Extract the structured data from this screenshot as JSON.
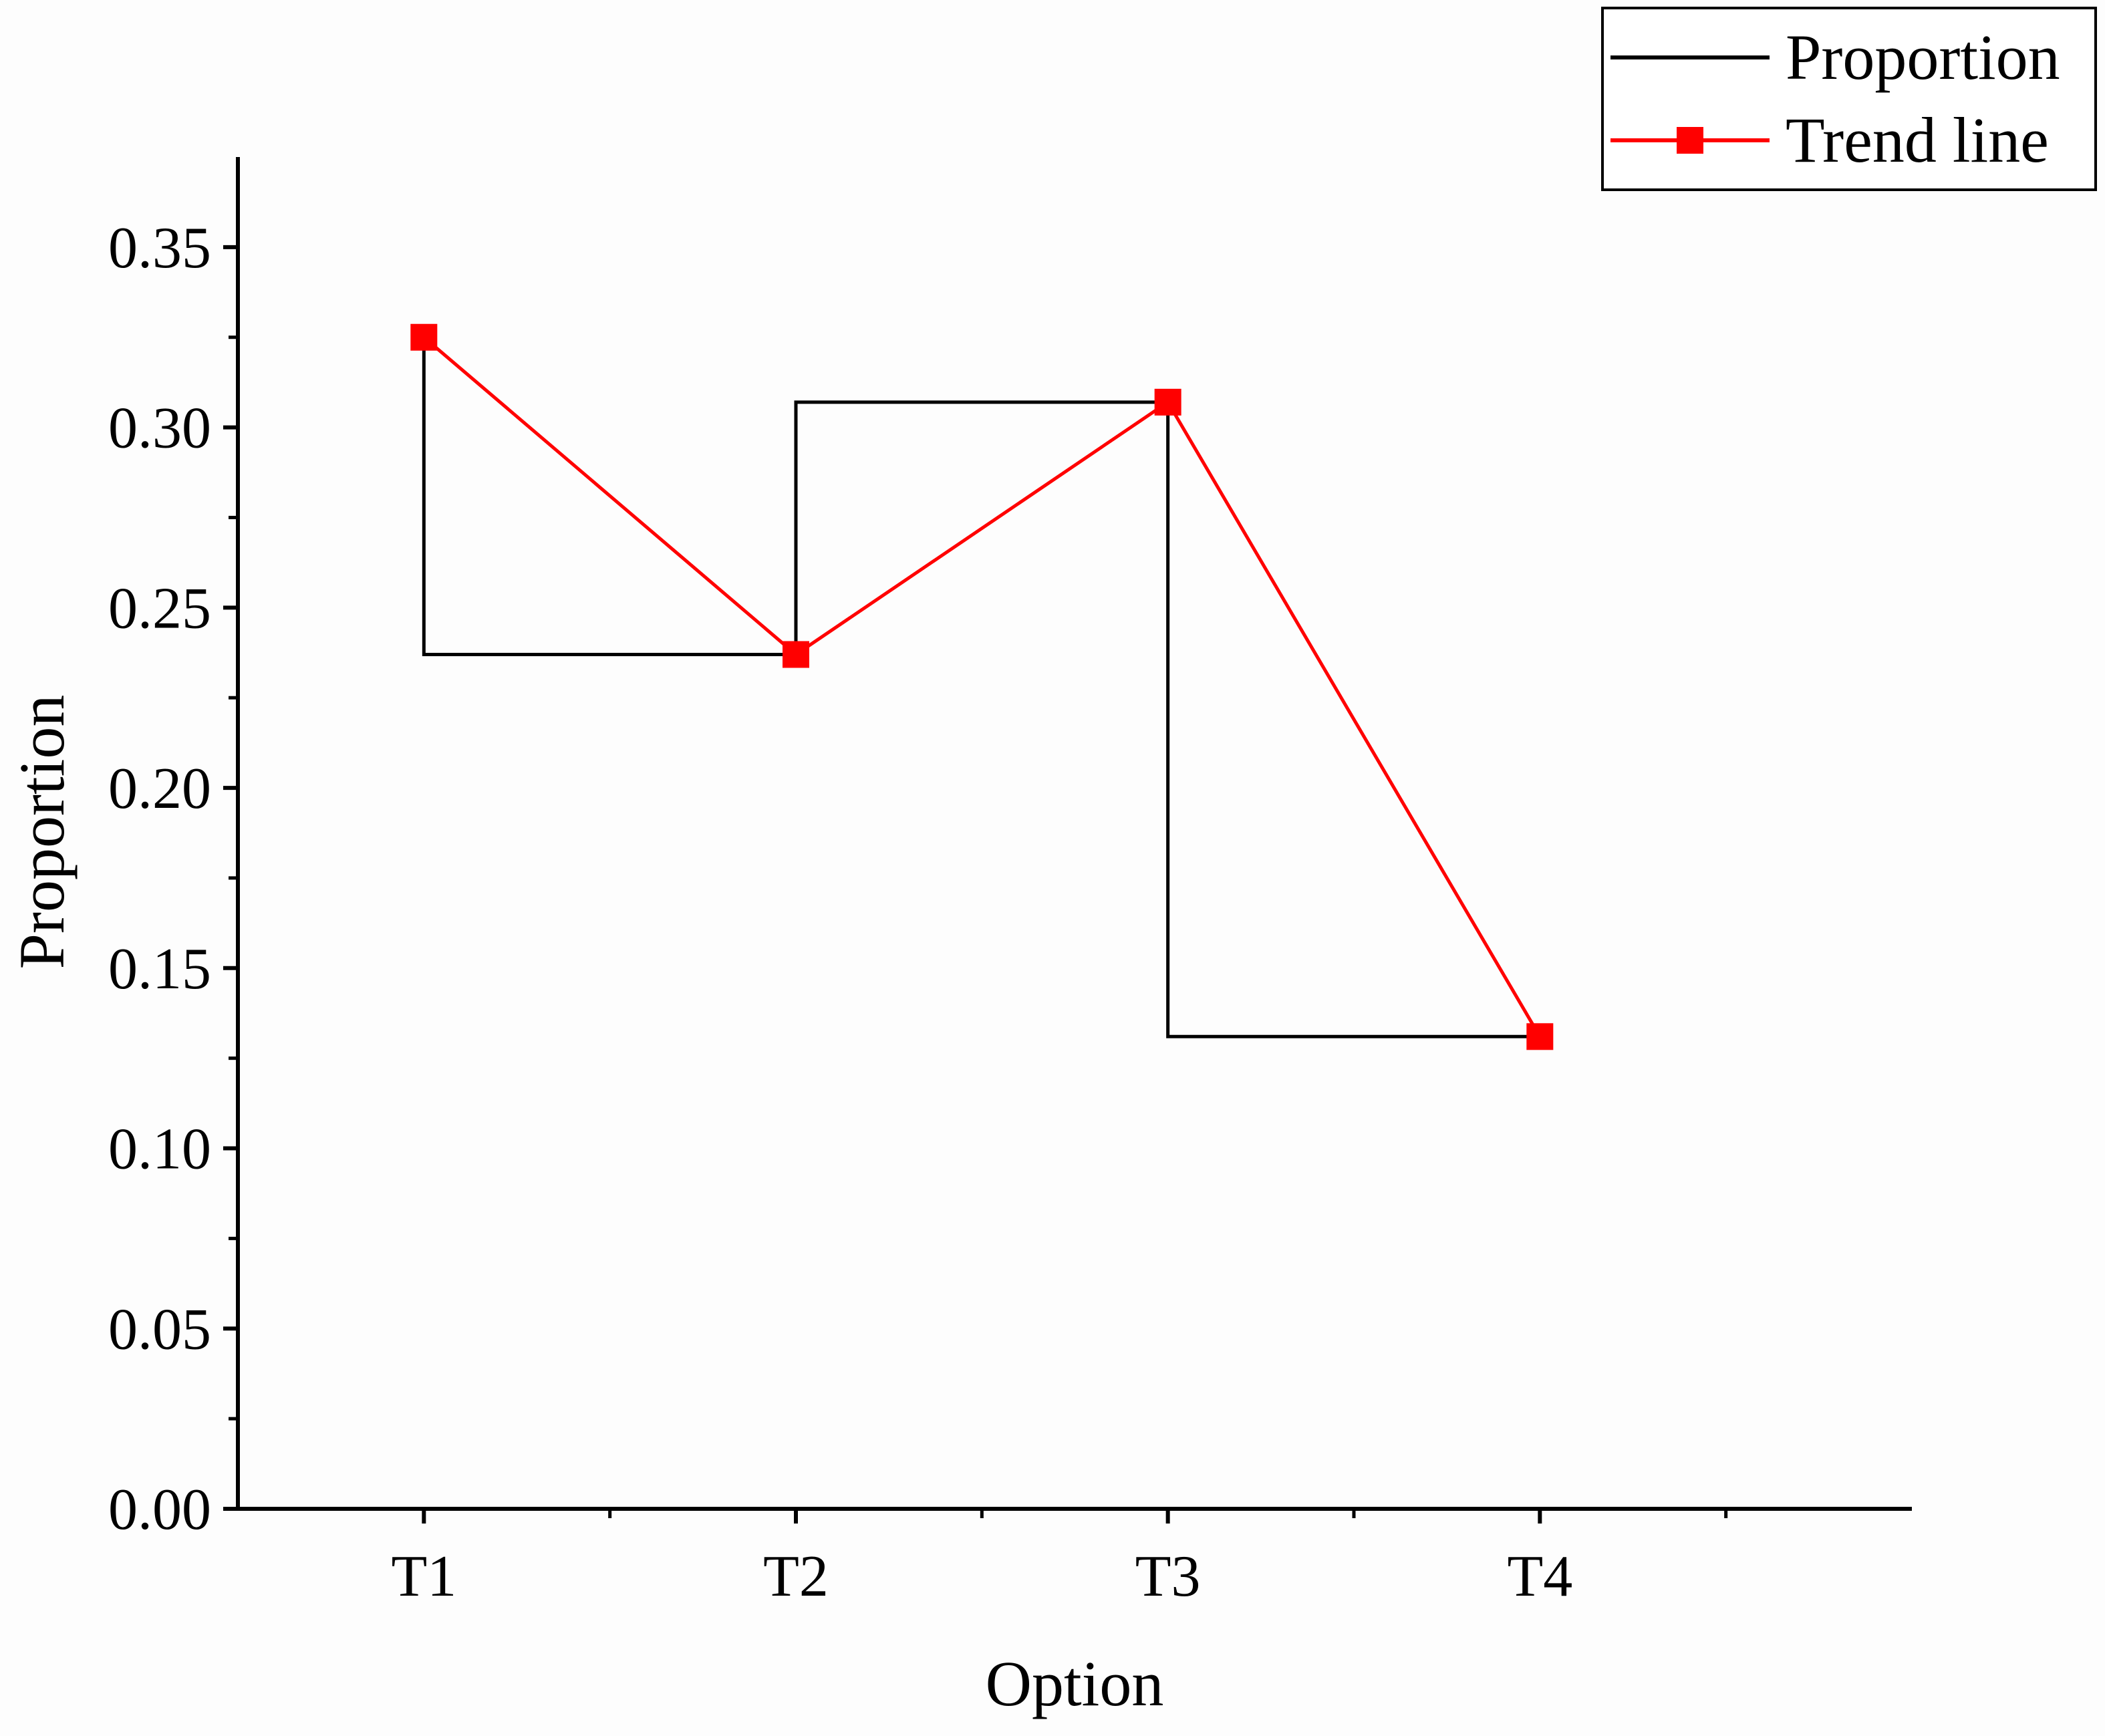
{
  "chart_data": {
    "type": "line",
    "categories": [
      "T1",
      "T2",
      "T3",
      "T4"
    ],
    "series": [
      {
        "name": "Proportion",
        "style": "step",
        "color": "#000000",
        "values": [
          0.325,
          0.237,
          0.307,
          0.131
        ]
      },
      {
        "name": "Trend line",
        "style": "line-with-square-markers",
        "color": "#ff0000",
        "values": [
          0.325,
          0.237,
          0.307,
          0.131
        ]
      }
    ],
    "xlabel": "Option",
    "ylabel": "Proportion",
    "ylim": [
      0,
      0.375
    ],
    "yticks": [
      "0.00",
      "0.05",
      "0.10",
      "0.15",
      "0.20",
      "0.25",
      "0.30",
      "0.35"
    ],
    "grid": false,
    "legend_position": "top-right"
  }
}
